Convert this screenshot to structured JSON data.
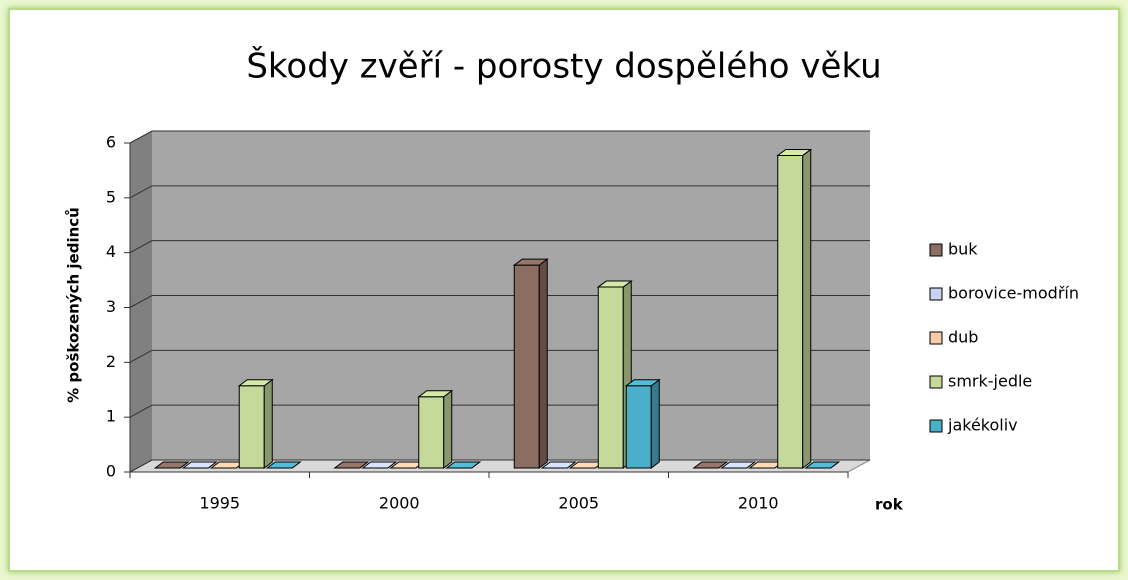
{
  "chart_data": {
    "type": "bar3d",
    "title": "Škody zvěří - porosty dospělého věku",
    "y_label": "% poškozených jedinců",
    "x_label": "rok",
    "categories": [
      "1995",
      "2000",
      "2005",
      "2010"
    ],
    "series": [
      {
        "name": "buk",
        "color": "#8c6d62",
        "values": [
          0,
          0,
          3.7,
          0
        ]
      },
      {
        "name": "borovice-modřín",
        "color": "#c8d3f2",
        "values": [
          0,
          0,
          0,
          0
        ]
      },
      {
        "name": "dub",
        "color": "#f8caa6",
        "values": [
          0,
          0,
          0,
          0
        ]
      },
      {
        "name": "smrk-jedle",
        "color": "#c4d99a",
        "values": [
          1.5,
          1.3,
          3.3,
          5.7
        ]
      },
      {
        "name": "jakékoliv",
        "color": "#4bafc9",
        "values": [
          0,
          0,
          1.5,
          0
        ]
      }
    ],
    "ylim": [
      0,
      6
    ],
    "yticks": [
      0,
      1,
      2,
      3,
      4,
      5,
      6
    ],
    "grid": true,
    "legend": "right"
  }
}
